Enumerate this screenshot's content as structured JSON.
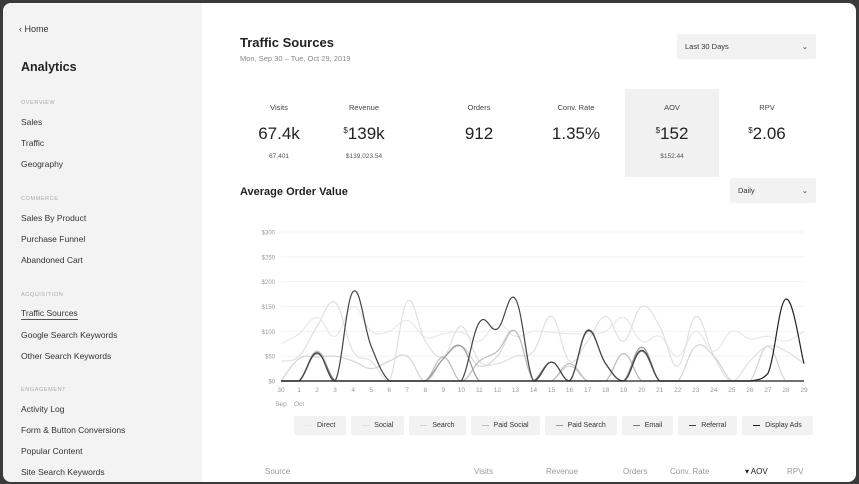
{
  "sidebar": {
    "home": "Home",
    "title": "Analytics",
    "sections": [
      {
        "label": "OVERVIEW",
        "items": [
          "Sales",
          "Traffic",
          "Geography"
        ]
      },
      {
        "label": "COMMERCE",
        "items": [
          "Sales By Product",
          "Purchase Funnel",
          "Abandoned Cart"
        ]
      },
      {
        "label": "ACQUISITION",
        "items": [
          "Traffic Sources",
          "Google Search Keywords",
          "Other Search Keywords"
        ]
      },
      {
        "label": "ENGAGEMENT",
        "items": [
          "Activity Log",
          "Form & Button Conversions",
          "Popular Content",
          "Site Search Keywords"
        ]
      }
    ],
    "active": "Traffic Sources"
  },
  "header": {
    "title": "Traffic Sources",
    "date_range": "Mon, Sep 30 – Tue, Oct 29, 2019",
    "range_select": "Last 30 Days"
  },
  "metrics": [
    {
      "label": "Visits",
      "prefix": "",
      "value": "67.4k",
      "detail": "67,401"
    },
    {
      "label": "Revenue",
      "prefix": "$",
      "value": "139k",
      "detail": "$139,023.54"
    },
    {
      "label": "Orders",
      "prefix": "",
      "value": "912",
      "detail": ""
    },
    {
      "label": "Conv. Rate",
      "prefix": "",
      "value": "1.35%",
      "detail": ""
    },
    {
      "label": "AOV",
      "prefix": "$",
      "value": "152",
      "detail": "$152.44",
      "selected": true
    },
    {
      "label": "RPV",
      "prefix": "$",
      "value": "2.06",
      "detail": ""
    }
  ],
  "chart_section": {
    "title": "Average Order Value",
    "interval_select": "Daily"
  },
  "chart_data": {
    "type": "line",
    "ylim": [
      0,
      300
    ],
    "yticks": [
      "$0",
      "$50",
      "$100",
      "$150",
      "$200",
      "$250",
      "$300"
    ],
    "x": [
      "30",
      "1",
      "2",
      "3",
      "4",
      "5",
      "6",
      "7",
      "8",
      "9",
      "10",
      "11",
      "12",
      "13",
      "14",
      "15",
      "16",
      "17",
      "18",
      "19",
      "20",
      "21",
      "22",
      "23",
      "24",
      "25",
      "26",
      "27",
      "28",
      "29"
    ],
    "x_month_labels": [
      "Sep",
      "Oct"
    ],
    "legend": "bottom",
    "grid": true,
    "series": [
      {
        "name": "Direct",
        "color": "#e8e8e8",
        "values": [
          75,
          95,
          128,
          90,
          150,
          100,
          100,
          122,
          88,
          95,
          98,
          80,
          115,
          90,
          100,
          98,
          95,
          95,
          100,
          128,
          80,
          90,
          50,
          100,
          60,
          100,
          85,
          90,
          80,
          100
        ]
      },
      {
        "name": "Social",
        "color": "#e0e0e0",
        "values": [
          40,
          50,
          110,
          158,
          60,
          40,
          0,
          160,
          80,
          50,
          110,
          40,
          35,
          50,
          60,
          130,
          40,
          80,
          130,
          80,
          150,
          110,
          30,
          130,
          50,
          0,
          40,
          70,
          60,
          35
        ]
      },
      {
        "name": "Search",
        "color": "#d4d4d4",
        "values": [
          0,
          45,
          48,
          50,
          40,
          25,
          40,
          50,
          0,
          45,
          70,
          30,
          50,
          100,
          0,
          0,
          30,
          0,
          0,
          55,
          0,
          0,
          0,
          70,
          50,
          0,
          0,
          70,
          0,
          0
        ]
      },
      {
        "name": "Paid Social",
        "color": "#bdbdbd",
        "values": [
          0,
          0,
          60,
          0,
          0,
          0,
          0,
          0,
          0,
          48,
          0,
          40,
          60,
          100,
          0,
          0,
          35,
          0,
          0,
          55,
          0,
          0,
          0,
          0,
          0,
          0,
          0,
          0,
          0,
          0
        ]
      },
      {
        "name": "Paid Search",
        "color": "#999999",
        "values": [
          0,
          0,
          0,
          0,
          0,
          0,
          0,
          0,
          0,
          45,
          70,
          0,
          0,
          0,
          0,
          0,
          0,
          0,
          0,
          0,
          68,
          0,
          0,
          0,
          0,
          0,
          0,
          0,
          0,
          0
        ]
      },
      {
        "name": "Email",
        "color": "#777777",
        "values": [
          0,
          0,
          55,
          0,
          0,
          0,
          0,
          0,
          0,
          0,
          0,
          0,
          0,
          0,
          0,
          38,
          0,
          100,
          35,
          0,
          60,
          0,
          0,
          0,
          0,
          0,
          0,
          0,
          0,
          0
        ]
      },
      {
        "name": "Referral",
        "color": "#444444",
        "values": [
          0,
          0,
          57,
          0,
          180,
          70,
          0,
          0,
          0,
          0,
          0,
          118,
          105,
          165,
          0,
          38,
          0,
          102,
          35,
          0,
          62,
          0,
          0,
          0,
          0,
          0,
          0,
          0,
          0,
          0
        ]
      },
      {
        "name": "Display Ads",
        "color": "#222222",
        "values": [
          0,
          0,
          0,
          0,
          0,
          0,
          0,
          0,
          0,
          0,
          0,
          0,
          0,
          0,
          0,
          0,
          0,
          0,
          0,
          0,
          0,
          0,
          0,
          0,
          0,
          0,
          0,
          15,
          165,
          35
        ]
      }
    ]
  },
  "table": {
    "columns": [
      "Source",
      "Visits",
      "Revenue",
      "Orders",
      "Conv. Rate",
      "AOV",
      "RPV"
    ],
    "sorted": "AOV"
  }
}
